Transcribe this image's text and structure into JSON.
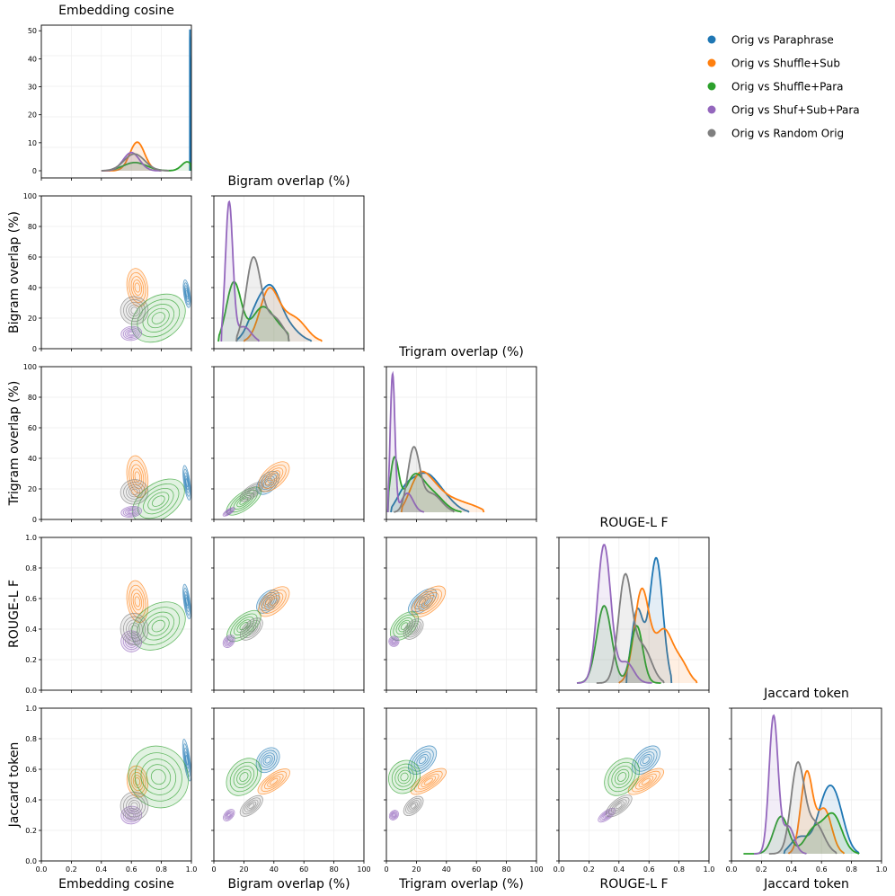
{
  "chart_data": {
    "type": "pairplot-kde",
    "variables": [
      {
        "key": "emb",
        "name": "Embedding cosine",
        "range": [
          0,
          1
        ],
        "ticks": [
          "0.0",
          "0.2",
          "0.4",
          "0.6",
          "0.8",
          "1.0"
        ],
        "density_ticks": [
          "0",
          "10",
          "20",
          "30",
          "40",
          "50"
        ],
        "density_max": 52
      },
      {
        "key": "bi",
        "name": "Bigram overlap (%)",
        "range": [
          0,
          100
        ],
        "ticks": [
          "0",
          "20",
          "40",
          "60",
          "80",
          "100"
        ]
      },
      {
        "key": "tri",
        "name": "Trigram overlap (%)",
        "range": [
          0,
          100
        ],
        "ticks": [
          "0",
          "20",
          "40",
          "60",
          "80",
          "100"
        ]
      },
      {
        "key": "rouge",
        "name": "ROUGE-L F",
        "range": [
          0,
          1
        ],
        "ticks": [
          "0.0",
          "0.2",
          "0.4",
          "0.6",
          "0.8",
          "1.0"
        ]
      },
      {
        "key": "jac",
        "name": "Jaccard token",
        "range": [
          0,
          1
        ],
        "ticks": [
          "0.0",
          "0.2",
          "0.4",
          "0.6",
          "0.8",
          "1.0"
        ]
      }
    ],
    "legend": {
      "position": "top-right"
    },
    "series": [
      {
        "name": "Orig vs Paraphrase",
        "color": "#1f77b4",
        "peak": {
          "emb": 50.5,
          "bi": 0.39,
          "tri": 0.27,
          "rouge": 0.86,
          "jac": 0.47
        },
        "means": {
          "emb": 0.98,
          "bi": 35,
          "tri": 22,
          "rouge": 0.64,
          "jac": 0.68
        }
      },
      {
        "name": "Orig vs Shuffle+Sub",
        "color": "#ff7f0e",
        "peak": {
          "emb": 10.2,
          "bi": 0.37,
          "tri": 0.28,
          "rouge": 0.65,
          "jac": 0.57
        },
        "means": {
          "emb": 0.63,
          "bi": 38,
          "tri": 28,
          "rouge": 0.55,
          "jac": 0.5
        }
      },
      {
        "name": "Orig vs Shuffle+Para",
        "color": "#2ca02c",
        "peak": {
          "emb": 3.2,
          "bi": 0.41,
          "tri": 0.38,
          "rouge": 0.53,
          "jac": 0.28
        },
        "means": {
          "emb": 0.7,
          "bi": 18,
          "tri": 10,
          "rouge": 0.4,
          "jac": 0.6
        }
      },
      {
        "name": "Orig vs Shuf+Sub+Para",
        "color": "#9467bd",
        "peak": {
          "emb": 6.5,
          "bi": 0.96,
          "tri": 0.95,
          "rouge": 0.95,
          "jac": 0.95
        },
        "means": {
          "emb": 0.6,
          "bi": 10,
          "tri": 5,
          "rouge": 0.3,
          "jac": 0.29
        }
      },
      {
        "name": "Orig vs Random Orig",
        "color": "#7f7f7f",
        "peak": {
          "emb": 6.0,
          "bi": 0.58,
          "tri": 0.45,
          "rouge": 0.75,
          "jac": 0.63
        },
        "means": {
          "emb": 0.62,
          "bi": 25,
          "tri": 17,
          "rouge": 0.37,
          "jac": 0.35
        }
      }
    ]
  }
}
